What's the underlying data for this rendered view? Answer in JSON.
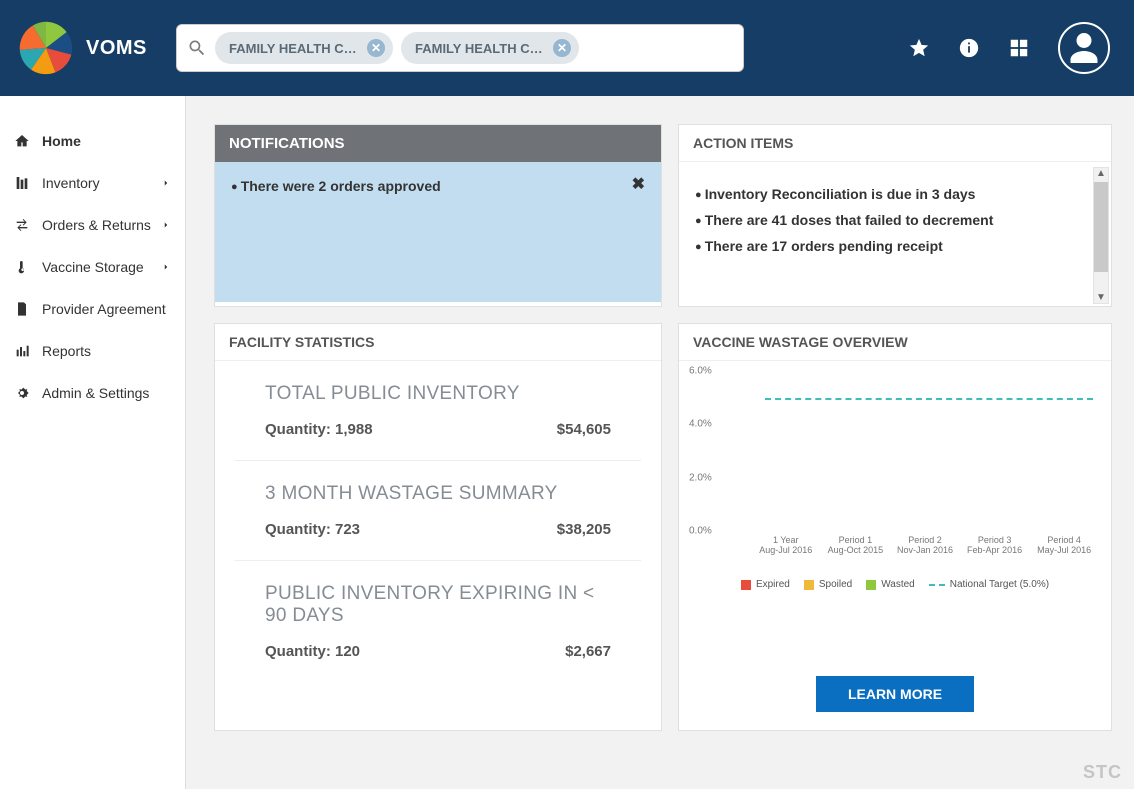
{
  "brand": "VOMS",
  "logo_colors": [
    "#f39c12",
    "#2aa7b0",
    "#1b4e84",
    "#e74c3c",
    "#8fc73e",
    "#f66b2f",
    "#7eb741"
  ],
  "search": {
    "chips": [
      {
        "label": "FAMILY HEALTH CEN..."
      },
      {
        "label": "FAMILY HEALTH CEN..."
      }
    ]
  },
  "sidebar": {
    "items": [
      {
        "label": "Home",
        "active": true,
        "chevron": false
      },
      {
        "label": "Inventory",
        "active": false,
        "chevron": true
      },
      {
        "label": "Orders & Returns",
        "active": false,
        "chevron": true
      },
      {
        "label": "Vaccine Storage",
        "active": false,
        "chevron": true
      },
      {
        "label": "Provider Agreement",
        "active": false,
        "chevron": false
      },
      {
        "label": "Reports",
        "active": false,
        "chevron": false
      },
      {
        "label": "Admin & Settings",
        "active": false,
        "chevron": false
      }
    ]
  },
  "notifications": {
    "title": "NOTIFICATIONS",
    "body_bg": "#c3ddf0",
    "item": "There were 2 orders approved"
  },
  "action_items": {
    "title": "ACTION ITEMS",
    "items": [
      "Inventory Reconciliation is due in 3 days",
      "There are 41 doses that failed to decrement",
      "There are 17 orders pending receipt"
    ]
  },
  "facility_stats": {
    "title": "FACILITY STATISTICS",
    "blocks": [
      {
        "heading": "TOTAL PUBLIC INVENTORY",
        "qty_label": "Quantity: 1,988",
        "amount": "$54,605"
      },
      {
        "heading": "3 MONTH WASTAGE SUMMARY",
        "qty_label": "Quantity: 723",
        "amount": "$38,205"
      },
      {
        "heading": "PUBLIC INVENTORY EXPIRING IN < 90 DAYS",
        "qty_label": "Quantity: 120",
        "amount": "$2,667"
      }
    ]
  },
  "wastage": {
    "title": "VACCINE WASTAGE OVERVIEW",
    "learn_more_label": "LEARN MORE",
    "chart": {
      "type": "line",
      "ylim": [
        0,
        6
      ],
      "ytick_step": 2,
      "ytick_format_suffix": "%",
      "national_target_pct": 5.0,
      "national_target_color": "#3fbdb7",
      "x_categories": [
        {
          "line1": "1 Year",
          "line2": "Aug-Jul 2016"
        },
        {
          "line1": "Period 1",
          "line2": "Aug-Oct 2015"
        },
        {
          "line1": "Period 2",
          "line2": "Nov-Jan 2016"
        },
        {
          "line1": "Period 3",
          "line2": "Feb-Apr 2016"
        },
        {
          "line1": "Period 4",
          "line2": "May-Jul 2016"
        }
      ],
      "legend": [
        {
          "label": "Expired",
          "color": "#e74c3c",
          "type": "swatch"
        },
        {
          "label": "Spoiled",
          "color": "#f1b93b",
          "type": "swatch"
        },
        {
          "label": "Wasted",
          "color": "#8fc73e",
          "type": "swatch"
        },
        {
          "label": "National Target (5.0%)",
          "color": "#3fbdb7",
          "type": "dash"
        }
      ],
      "grid_color": "#e0e0e0",
      "axis_font_size": 10
    }
  },
  "footer_logo": "STC"
}
